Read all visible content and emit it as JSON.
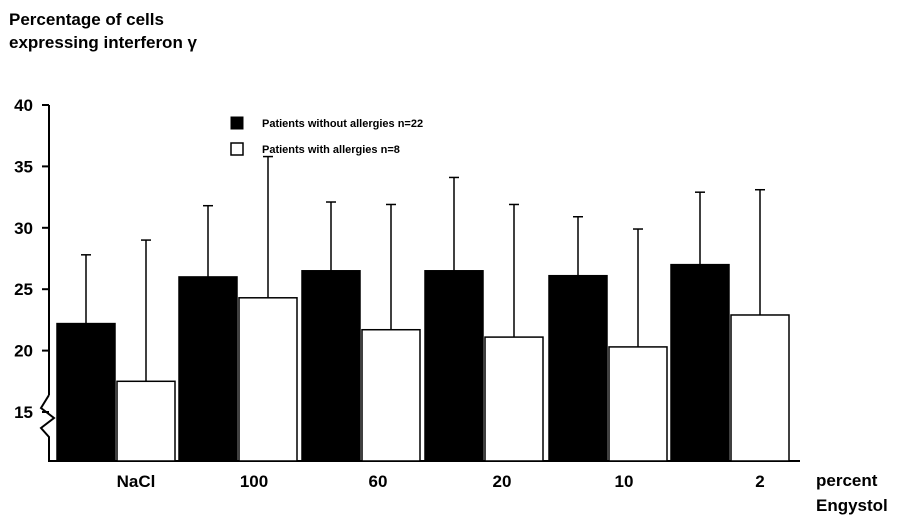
{
  "chart_data": {
    "type": "bar",
    "ylabel": [
      "Percentage of cells",
      "expressing interferon γ"
    ],
    "xlabel": [
      "percent",
      "Engystol"
    ],
    "categories": [
      "NaCl",
      "100",
      "60",
      "20",
      "10",
      "2"
    ],
    "series": [
      {
        "name": "Patients without allergies n=22",
        "color": "#000000",
        "values": [
          22.2,
          26.0,
          26.5,
          26.5,
          26.1,
          27.0
        ],
        "error_upper": [
          27.8,
          31.8,
          32.1,
          34.1,
          30.9,
          32.9
        ]
      },
      {
        "name": "Patients with allergies n=8",
        "color": "#ffffff",
        "values": [
          17.5,
          24.3,
          21.7,
          21.1,
          20.3,
          22.9
        ],
        "error_upper": [
          29.0,
          35.8,
          31.9,
          31.9,
          29.9,
          33.1
        ]
      }
    ],
    "yticks": [
      15,
      20,
      25,
      30,
      35,
      40
    ],
    "ylim": [
      12.5,
      40
    ],
    "axis_break": true,
    "grid": false,
    "legend_position": "top-center"
  }
}
